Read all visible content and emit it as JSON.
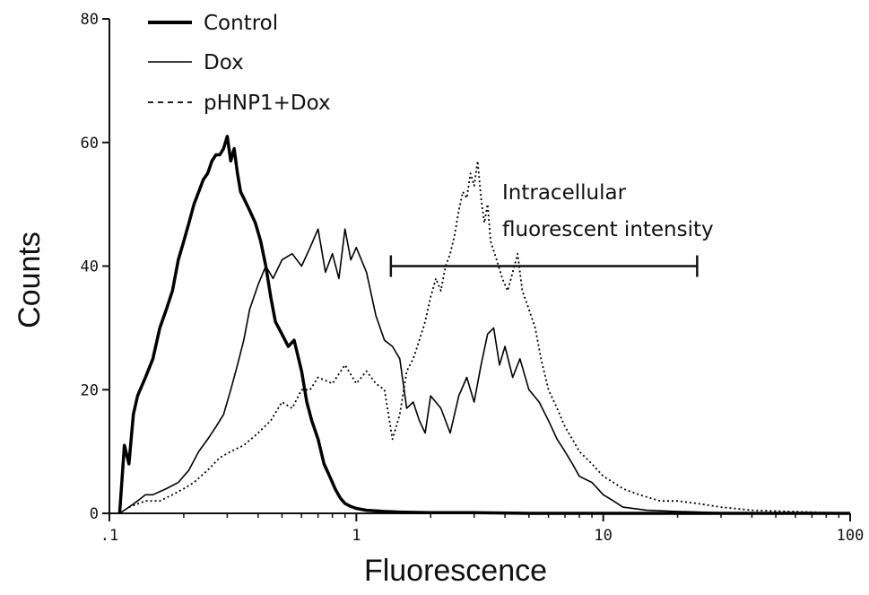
{
  "chart_data": {
    "type": "line",
    "title": "",
    "xlabel": "Fluorescence",
    "ylabel": "Counts",
    "x_scale": "log",
    "xlim": [
      0.1,
      100
    ],
    "ylim": [
      0,
      80
    ],
    "x_ticks": [
      {
        "value": 0.1,
        "label": ".1"
      },
      {
        "value": 1,
        "label": "1"
      },
      {
        "value": 10,
        "label": "10"
      },
      {
        "value": 100,
        "label": "100"
      }
    ],
    "y_ticks": [
      {
        "value": 0,
        "label": "0"
      },
      {
        "value": 20,
        "label": "20"
      },
      {
        "value": 40,
        "label": "40"
      },
      {
        "value": 60,
        "label": "60"
      },
      {
        "value": 80,
        "label": "80"
      }
    ],
    "grid": false,
    "legend": "top-left",
    "series": [
      {
        "name": "Control",
        "style": "thick-solid",
        "color": "#000000",
        "x": [
          0.11,
          0.115,
          0.12,
          0.125,
          0.13,
          0.14,
          0.15,
          0.16,
          0.17,
          0.18,
          0.19,
          0.2,
          0.21,
          0.22,
          0.23,
          0.24,
          0.25,
          0.26,
          0.27,
          0.28,
          0.29,
          0.3,
          0.31,
          0.32,
          0.33,
          0.34,
          0.35,
          0.37,
          0.39,
          0.41,
          0.43,
          0.45,
          0.47,
          0.5,
          0.53,
          0.56,
          0.6,
          0.63,
          0.66,
          0.7,
          0.74,
          0.78,
          0.82,
          0.86,
          0.9,
          0.95,
          1.0,
          1.1,
          1.2,
          1.3,
          1.5,
          2,
          3,
          5,
          10,
          30,
          100
        ],
        "y": [
          0,
          11,
          8,
          16,
          19,
          22,
          25,
          30,
          33,
          36,
          41,
          44,
          47,
          50,
          52,
          54,
          55,
          57,
          58,
          58,
          59,
          61,
          57,
          59,
          55,
          52,
          51,
          49,
          47,
          44,
          40,
          35,
          31,
          29,
          27,
          28,
          23,
          18,
          15,
          12,
          8,
          6,
          4,
          2.5,
          1.6,
          1.1,
          0.8,
          0.5,
          0.4,
          0.3,
          0.2,
          0.1,
          0.1,
          0,
          0,
          0,
          0
        ]
      },
      {
        "name": "Dox",
        "style": "thin-solid",
        "color": "#000000",
        "x": [
          0.11,
          0.12,
          0.13,
          0.14,
          0.15,
          0.17,
          0.19,
          0.21,
          0.23,
          0.25,
          0.27,
          0.29,
          0.31,
          0.33,
          0.35,
          0.37,
          0.4,
          0.43,
          0.46,
          0.5,
          0.55,
          0.6,
          0.65,
          0.7,
          0.75,
          0.8,
          0.85,
          0.9,
          0.95,
          1.0,
          1.1,
          1.2,
          1.3,
          1.4,
          1.5,
          1.6,
          1.7,
          1.8,
          1.9,
          2.0,
          2.2,
          2.4,
          2.6,
          2.8,
          3.0,
          3.2,
          3.4,
          3.6,
          3.8,
          4.0,
          4.3,
          4.6,
          5.0,
          5.5,
          6.0,
          6.5,
          7.0,
          7.5,
          8,
          9,
          10,
          11,
          12,
          15,
          20,
          30,
          50,
          100
        ],
        "y": [
          0,
          1,
          2,
          3,
          3,
          4,
          5,
          7,
          10,
          12,
          14,
          16,
          20,
          24,
          28,
          33,
          37,
          40,
          38,
          41,
          42,
          40,
          43,
          46,
          39,
          42,
          38,
          46,
          41,
          43,
          39,
          32,
          28,
          27,
          25,
          17,
          18,
          15,
          13,
          19,
          17,
          13,
          19,
          22,
          18,
          24,
          29,
          30,
          24,
          27,
          22,
          25,
          20,
          18,
          15,
          12,
          10,
          8,
          6,
          5,
          3,
          2,
          1,
          0.5,
          0.3,
          0.1,
          0,
          0
        ]
      },
      {
        "name": "pHNP1+Dox",
        "style": "dotted",
        "color": "#000000",
        "x": [
          0.12,
          0.14,
          0.16,
          0.18,
          0.2,
          0.22,
          0.25,
          0.28,
          0.31,
          0.35,
          0.4,
          0.45,
          0.5,
          0.55,
          0.6,
          0.65,
          0.7,
          0.8,
          0.9,
          1.0,
          1.1,
          1.2,
          1.3,
          1.4,
          1.5,
          1.6,
          1.7,
          1.8,
          1.9,
          2.0,
          2.1,
          2.2,
          2.3,
          2.4,
          2.5,
          2.6,
          2.7,
          2.8,
          2.9,
          3.0,
          3.1,
          3.2,
          3.3,
          3.4,
          3.5,
          3.7,
          3.9,
          4.1,
          4.3,
          4.5,
          4.7,
          5.0,
          5.3,
          5.6,
          6.0,
          6.5,
          7.0,
          7.5,
          8.0,
          9,
          10,
          11,
          12,
          14,
          17,
          20,
          25,
          30,
          40,
          100
        ],
        "y": [
          1,
          2,
          2,
          3,
          4,
          5,
          7,
          9,
          10,
          11,
          13,
          15,
          18,
          17,
          20,
          20,
          22,
          21,
          24,
          21,
          23,
          21,
          20,
          12,
          16,
          23,
          25,
          28,
          31,
          35,
          38,
          36,
          40,
          42,
          45,
          49,
          52,
          51,
          55,
          53,
          57,
          51,
          47,
          50,
          44,
          41,
          38,
          36,
          39,
          42,
          36,
          33,
          30,
          25,
          20,
          17,
          14,
          12,
          10,
          8,
          6,
          5,
          4,
          3,
          2,
          2,
          1.5,
          1,
          0.5,
          0
        ]
      }
    ],
    "annotation": {
      "line1": "Intracellular",
      "line2": "fluorescent intensity",
      "bar_x_start": 1.38,
      "bar_x_end": 24,
      "bar_y": 40
    }
  }
}
